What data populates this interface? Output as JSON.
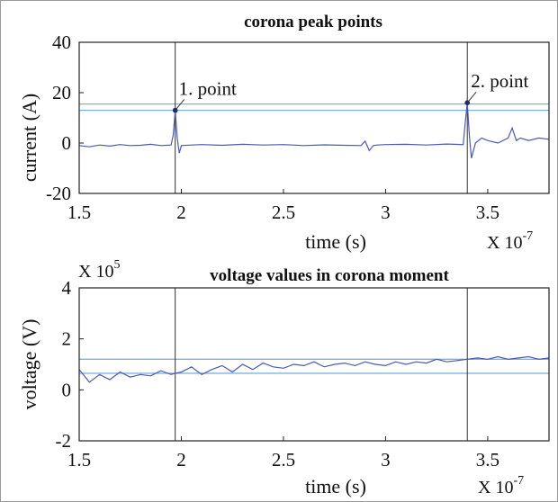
{
  "chart_data": [
    {
      "type": "line",
      "title": "corona peak points",
      "xlabel": "time (s)",
      "ylabel": "current (A)",
      "x_multiplier": "X 10",
      "x_multiplier_exp": "-7",
      "xlim": [
        1.5,
        3.8
      ],
      "ylim": [
        -20,
        40
      ],
      "xticks": [
        "1.5",
        "2",
        "2.5",
        "3",
        "3.5"
      ],
      "yticks": [
        "-20",
        "0",
        "20",
        "40"
      ],
      "vertical_lines_x": [
        1.97,
        3.4
      ],
      "horizontal_lines_y": [
        13,
        15.5
      ],
      "annotations": [
        {
          "text": "1. point",
          "x": 1.97,
          "y": 13
        },
        {
          "text": "2. point",
          "x": 3.4,
          "y": 16
        }
      ],
      "series": [
        {
          "color": "#4b5ab0",
          "x": [
            1.5,
            1.55,
            1.6,
            1.65,
            1.7,
            1.75,
            1.8,
            1.85,
            1.9,
            1.95,
            1.96,
            1.97,
            1.98,
            1.99,
            2.0,
            2.05,
            2.1,
            2.2,
            2.3,
            2.4,
            2.5,
            2.6,
            2.7,
            2.8,
            2.88,
            2.9,
            2.92,
            2.94,
            2.96,
            3.0,
            3.1,
            3.2,
            3.3,
            3.38,
            3.39,
            3.4,
            3.41,
            3.42,
            3.44,
            3.47,
            3.5,
            3.55,
            3.6,
            3.62,
            3.64,
            3.66,
            3.7,
            3.75,
            3.8
          ],
          "y": [
            -1,
            -1.5,
            -0.8,
            -1.2,
            -0.6,
            -1,
            -0.9,
            -0.5,
            -1,
            -0.8,
            3,
            13,
            2,
            -4,
            -1,
            -0.8,
            -0.6,
            -0.9,
            -0.5,
            -0.8,
            -0.6,
            -1,
            -0.7,
            -0.9,
            -1,
            0.8,
            -3,
            -1,
            -0.8,
            -0.6,
            -0.5,
            -0.8,
            -0.4,
            -0.6,
            8,
            16,
            3,
            -6,
            0,
            2,
            1,
            0,
            2,
            6,
            1,
            2,
            1,
            2,
            1.5
          ]
        }
      ]
    },
    {
      "type": "line",
      "title": "voltage values in corona moment",
      "xlabel": "time (s)",
      "ylabel": "voltage (V)",
      "x_multiplier": "X 10",
      "x_multiplier_exp": "-7",
      "y_multiplier": "X 10",
      "y_multiplier_exp": "5",
      "xlim": [
        1.5,
        3.8
      ],
      "ylim": [
        -2,
        4
      ],
      "xticks": [
        "1.5",
        "2",
        "2.5",
        "3",
        "3.5"
      ],
      "yticks": [
        "-2",
        "0",
        "2",
        "4"
      ],
      "vertical_lines_x": [
        1.97,
        3.4
      ],
      "horizontal_lines_y": [
        0.65,
        1.2
      ],
      "series": [
        {
          "color": "#4b5ab0",
          "x": [
            1.5,
            1.55,
            1.6,
            1.65,
            1.7,
            1.75,
            1.8,
            1.85,
            1.9,
            1.95,
            1.97,
            2.0,
            2.05,
            2.1,
            2.15,
            2.2,
            2.25,
            2.3,
            2.35,
            2.4,
            2.45,
            2.5,
            2.55,
            2.6,
            2.65,
            2.7,
            2.75,
            2.8,
            2.85,
            2.9,
            2.95,
            3.0,
            3.05,
            3.1,
            3.15,
            3.2,
            3.25,
            3.3,
            3.35,
            3.4,
            3.45,
            3.5,
            3.55,
            3.6,
            3.65,
            3.7,
            3.75,
            3.8
          ],
          "y": [
            0.8,
            0.3,
            0.6,
            0.4,
            0.7,
            0.5,
            0.6,
            0.55,
            0.75,
            0.6,
            0.65,
            0.7,
            0.9,
            0.6,
            0.8,
            0.95,
            0.7,
            1.0,
            0.8,
            1.05,
            0.9,
            0.85,
            1.0,
            0.95,
            1.1,
            0.9,
            1.0,
            1.05,
            0.95,
            1.1,
            1.0,
            0.95,
            1.1,
            1.0,
            1.1,
            1.05,
            1.2,
            1.1,
            1.15,
            1.2,
            1.25,
            1.2,
            1.3,
            1.2,
            1.25,
            1.3,
            1.2,
            1.25
          ]
        }
      ]
    }
  ]
}
